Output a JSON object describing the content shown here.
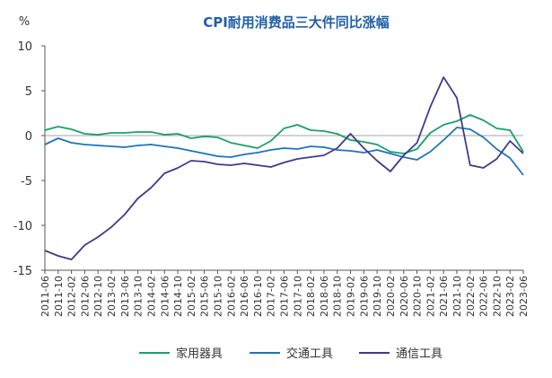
{
  "chart_data": {
    "type": "line",
    "title": "CPI耐用消费品三大件同比涨幅",
    "ylabel": "%",
    "xlabel": "",
    "ylim": [
      -15,
      10
    ],
    "yticks": [
      10,
      5,
      0,
      -5,
      -10,
      -15
    ],
    "grid": false,
    "legend_position": "bottom",
    "colors": {
      "title": "#1f5fa8",
      "axis": "#555555"
    },
    "x": [
      "2011-06",
      "2011-10",
      "2012-02",
      "2012-06",
      "2012-10",
      "2013-02",
      "2013-06",
      "2013-10",
      "2014-02",
      "2014-06",
      "2014-10",
      "2015-02",
      "2015-06",
      "2015-10",
      "2016-02",
      "2016-06",
      "2016-10",
      "2017-02",
      "2017-06",
      "2017-10",
      "2018-02",
      "2018-06",
      "2018-10",
      "2019-02",
      "2019-06",
      "2019-10",
      "2020-02",
      "2020-06",
      "2020-10",
      "2021-02",
      "2021-06",
      "2021-10",
      "2022-02",
      "2022-06",
      "2022-10",
      "2023-02",
      "2023-06"
    ],
    "series": [
      {
        "name": "家用器具",
        "color": "#1aa06a",
        "values": [
          0.6,
          1.0,
          0.7,
          0.2,
          0.1,
          0.3,
          0.3,
          0.4,
          0.4,
          0.1,
          0.2,
          -0.3,
          -0.1,
          -0.2,
          -0.8,
          -1.1,
          -1.4,
          -0.6,
          0.8,
          1.2,
          0.6,
          0.5,
          0.2,
          -0.5,
          -0.7,
          -1.0,
          -1.8,
          -2.0,
          -1.5,
          0.3,
          1.2,
          1.6,
          2.3,
          1.7,
          0.8,
          0.6,
          -1.8
        ]
      },
      {
        "name": "交通工具",
        "color": "#1e73be",
        "values": [
          -1.0,
          -0.3,
          -0.8,
          -1.0,
          -1.1,
          -1.2,
          -1.3,
          -1.1,
          -1.0,
          -1.2,
          -1.4,
          -1.7,
          -2.0,
          -2.3,
          -2.4,
          -2.1,
          -1.9,
          -1.6,
          -1.4,
          -1.5,
          -1.2,
          -1.3,
          -1.6,
          -1.7,
          -1.9,
          -1.6,
          -2.0,
          -2.4,
          -2.7,
          -1.8,
          -0.5,
          0.9,
          0.7,
          -0.2,
          -1.5,
          -2.5,
          -4.4
        ]
      },
      {
        "name": "通信工具",
        "color": "#3d3c8c",
        "values": [
          -12.8,
          -13.4,
          -13.8,
          -12.2,
          -11.3,
          -10.2,
          -8.8,
          -7.0,
          -5.8,
          -4.2,
          -3.6,
          -2.8,
          -2.9,
          -3.2,
          -3.3,
          -3.1,
          -3.3,
          -3.5,
          -3.0,
          -2.6,
          -2.4,
          -2.2,
          -1.4,
          0.2,
          -1.4,
          -2.8,
          -4.0,
          -2.2,
          -0.8,
          3.2,
          6.5,
          4.2,
          -3.3,
          -3.6,
          -2.6,
          -0.6,
          -2.0
        ]
      }
    ]
  }
}
